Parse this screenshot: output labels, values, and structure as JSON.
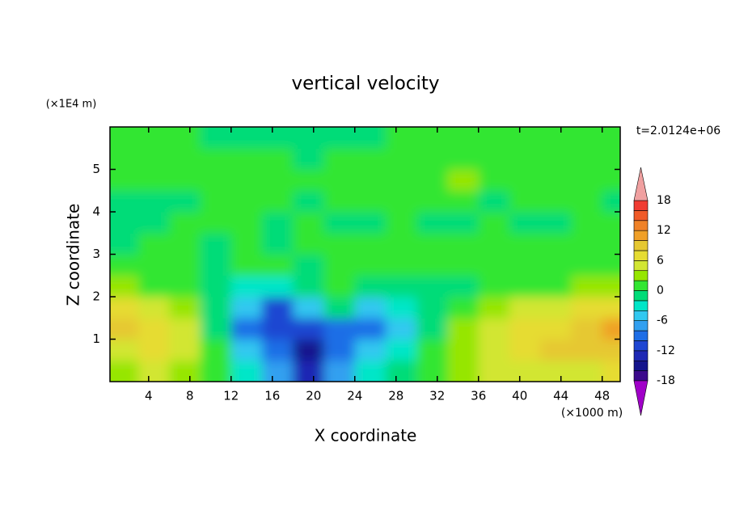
{
  "chart_data": {
    "type": "contour",
    "title": "vertical velocity",
    "x_label": "X coordinate",
    "y_label": "Z coordinate",
    "x_unit": "(×1000 m)",
    "y_unit": "(×1E4 m)",
    "time_label": "t=2.0124e+06",
    "xlim": [
      0.25,
      49.75
    ],
    "ylim": [
      0,
      6
    ],
    "xticks": [
      4,
      8,
      12,
      16,
      20,
      24,
      28,
      32,
      36,
      40,
      44,
      48
    ],
    "yticks": [
      1,
      2,
      3,
      4,
      5
    ],
    "x": [
      1.5,
      4.5,
      7.5,
      10.5,
      13.5,
      16.5,
      19.5,
      22.5,
      25.5,
      28.5,
      31.5,
      34.5,
      37.5,
      40.5,
      43.5,
      46.5,
      49.5
    ],
    "y": [
      0.25,
      0.75,
      1.25,
      1.75,
      2.25,
      2.75,
      3.25,
      3.75,
      4.25,
      4.75,
      5.25,
      5.75
    ],
    "z": [
      [
        3,
        5,
        3,
        1,
        -3,
        -7,
        -13,
        -7,
        -3,
        -1,
        1,
        3,
        5,
        5,
        5,
        5,
        7
      ],
      [
        5,
        7,
        5,
        1,
        -5,
        -9,
        -15,
        -9,
        -5,
        -3,
        1,
        3,
        5,
        7,
        9,
        9,
        9
      ],
      [
        9,
        7,
        5,
        -1,
        -9,
        -11,
        -11,
        -9,
        -9,
        -5,
        -1,
        3,
        5,
        7,
        7,
        9,
        11
      ],
      [
        7,
        5,
        3,
        -1,
        -5,
        -11,
        -5,
        -1,
        -5,
        -3,
        -1,
        1,
        3,
        5,
        5,
        7,
        7
      ],
      [
        3,
        1,
        1,
        -1,
        -3,
        -3,
        -1,
        1,
        -1,
        -1,
        -1,
        -1,
        1,
        1,
        1,
        3,
        3
      ],
      [
        1,
        1,
        1,
        -1,
        1,
        1,
        -1,
        1,
        1,
        1,
        1,
        1,
        1,
        1,
        1,
        1,
        1
      ],
      [
        -1,
        1,
        1,
        -1,
        1,
        -1,
        1,
        1,
        1,
        1,
        1,
        1,
        1,
        1,
        1,
        1,
        1
      ],
      [
        -1,
        -1,
        1,
        1,
        1,
        -1,
        1,
        -1,
        -1,
        1,
        -1,
        -1,
        1,
        -1,
        -1,
        1,
        1
      ],
      [
        -1,
        -1,
        -1,
        1,
        1,
        1,
        -1,
        1,
        1,
        1,
        1,
        1,
        -1,
        1,
        1,
        1,
        -1
      ],
      [
        1,
        1,
        1,
        1,
        1,
        1,
        1,
        1,
        1,
        1,
        1,
        3,
        1,
        1,
        1,
        1,
        1
      ],
      [
        1,
        1,
        1,
        1,
        1,
        1,
        -1,
        1,
        1,
        1,
        1,
        1,
        1,
        1,
        1,
        1,
        1
      ],
      [
        1,
        1,
        1,
        -1,
        -1,
        -1,
        -1,
        -1,
        -1,
        1,
        1,
        1,
        1,
        1,
        1,
        1,
        1
      ]
    ],
    "levels": [
      -18,
      -16,
      -14,
      -12,
      -10,
      -8,
      -6,
      -4,
      -2,
      0,
      2,
      4,
      6,
      8,
      10,
      12,
      14,
      16,
      18
    ],
    "colors": [
      "#a000c8",
      "#3c0a8c",
      "#14148c",
      "#1e28b4",
      "#1e46d2",
      "#1e6ee6",
      "#32a0f0",
      "#32c8f0",
      "#00e6c8",
      "#00dc78",
      "#32e632",
      "#96e600",
      "#d2e632",
      "#e6dc32",
      "#e6c832",
      "#f0a028",
      "#f08228",
      "#f05a28",
      "#f03c32",
      "#f0a0a0"
    ],
    "colorbar_ticks": [
      -18,
      -12,
      -6,
      0,
      6,
      12,
      18
    ]
  }
}
